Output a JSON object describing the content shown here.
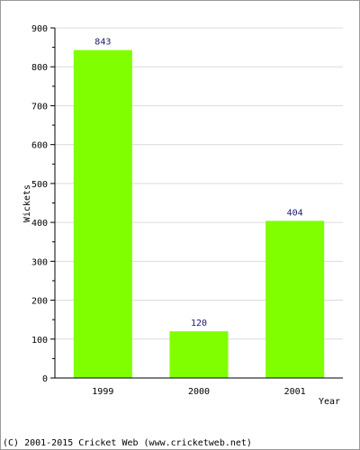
{
  "chart_data": {
    "type": "bar",
    "categories": [
      "1999",
      "2000",
      "2001"
    ],
    "values": [
      843,
      120,
      404
    ],
    "data_labels": [
      "843",
      "120",
      "404"
    ],
    "ylabel": "Wickets",
    "xlabel": "Year",
    "ylim": [
      0,
      900
    ],
    "yticks": [
      0,
      100,
      200,
      300,
      400,
      500,
      600,
      700,
      800,
      900
    ],
    "ytick_labels": [
      "0",
      "100",
      "200",
      "300",
      "400",
      "500",
      "600",
      "700",
      "800",
      "900"
    ],
    "grid": true,
    "bar_color": "#80ff00",
    "grid_color": "#dcdcdc"
  },
  "footer": {
    "text": "(C) 2001-2015 Cricket Web (www.cricketweb.net)"
  }
}
